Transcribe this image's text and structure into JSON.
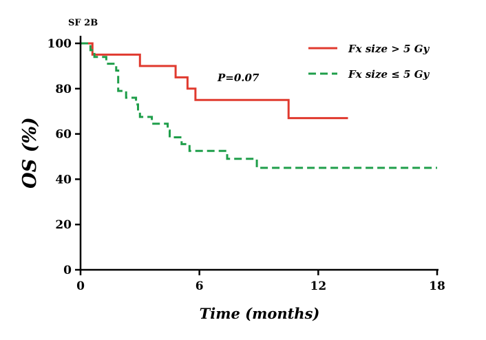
{
  "chart_data": {
    "type": "line",
    "panel_label": "SF 2B",
    "xlabel": "Time (months)",
    "ylabel": "OS (%)",
    "xlim": [
      0,
      18
    ],
    "ylim": [
      0,
      100
    ],
    "x_ticks": [
      0,
      6,
      12,
      18
    ],
    "y_ticks": [
      0,
      20,
      40,
      60,
      80,
      100
    ],
    "legend_position": "top-right",
    "annotation": "P=0.07",
    "series": [
      {
        "name": "Fx size > 5 Gy",
        "color": "#e03a2f",
        "style": "solid",
        "points": [
          [
            0,
            100
          ],
          [
            0.6,
            100
          ],
          [
            0.6,
            95
          ],
          [
            3,
            95
          ],
          [
            3,
            90
          ],
          [
            4.8,
            90
          ],
          [
            4.8,
            85
          ],
          [
            5.4,
            85
          ],
          [
            5.4,
            80
          ],
          [
            5.8,
            80
          ],
          [
            5.8,
            75
          ],
          [
            10.5,
            75
          ],
          [
            10.5,
            67
          ],
          [
            13.5,
            67
          ]
        ]
      },
      {
        "name": "Fx size ≤ 5 Gy",
        "color": "#1f9e4a",
        "style": "dashed",
        "points": [
          [
            0,
            100
          ],
          [
            0.5,
            100
          ],
          [
            0.5,
            97
          ],
          [
            0.7,
            97
          ],
          [
            0.7,
            94
          ],
          [
            1.3,
            94
          ],
          [
            1.3,
            91
          ],
          [
            1.8,
            91
          ],
          [
            1.8,
            88
          ],
          [
            1.9,
            88
          ],
          [
            1.9,
            79
          ],
          [
            2.3,
            79
          ],
          [
            2.3,
            76
          ],
          [
            2.8,
            76
          ],
          [
            2.8,
            73
          ],
          [
            2.9,
            73
          ],
          [
            2.9,
            70
          ],
          [
            3.0,
            70
          ],
          [
            3.0,
            67.5
          ],
          [
            3.6,
            67.5
          ],
          [
            3.6,
            64.5
          ],
          [
            4.4,
            64.5
          ],
          [
            4.4,
            61.5
          ],
          [
            4.5,
            61.5
          ],
          [
            4.5,
            58.5
          ],
          [
            5.1,
            58.5
          ],
          [
            5.1,
            55.5
          ],
          [
            5.5,
            55.5
          ],
          [
            5.5,
            52.5
          ],
          [
            7.4,
            52.5
          ],
          [
            7.4,
            49
          ],
          [
            8.9,
            49
          ],
          [
            8.9,
            45
          ],
          [
            18,
            45
          ]
        ]
      }
    ]
  }
}
